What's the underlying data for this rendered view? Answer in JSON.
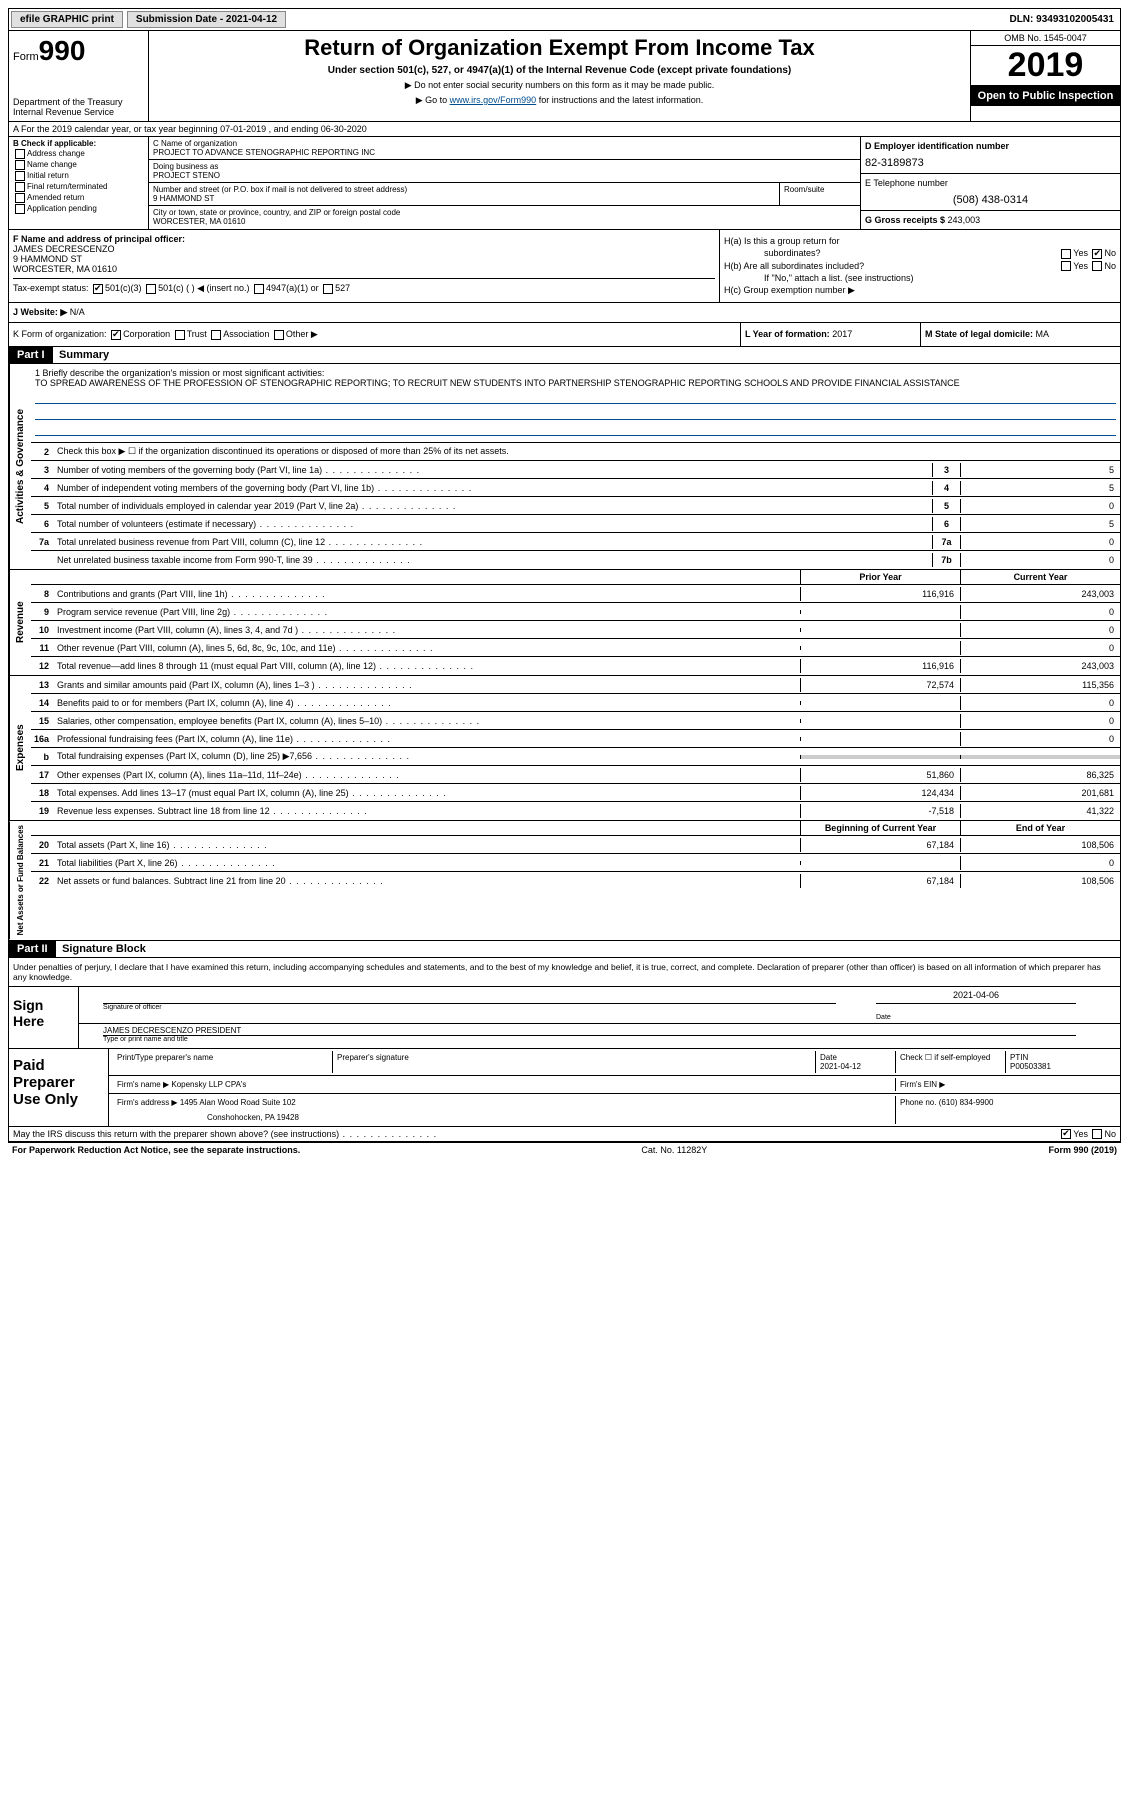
{
  "topbar": {
    "efile": "efile GRAPHIC print",
    "subdate_label": "Submission Date - 2021-04-12",
    "dln": "DLN: 93493102005431"
  },
  "hdr": {
    "form_prefix": "Form",
    "form_num": "990",
    "dept": "Department of the Treasury\nInternal Revenue Service",
    "title": "Return of Organization Exempt From Income Tax",
    "sub": "Under section 501(c), 527, or 4947(a)(1) of the Internal Revenue Code (except private foundations)",
    "note1": "▶ Do not enter social security numbers on this form as it may be made public.",
    "note2_pre": "▶ Go to ",
    "note2_link": "www.irs.gov/Form990",
    "note2_post": " for instructions and the latest information.",
    "omb": "OMB No. 1545-0047",
    "year": "2019",
    "inspect": "Open to Public Inspection"
  },
  "rowA": "A For the 2019 calendar year, or tax year beginning 07-01-2019   , and ending 06-30-2020",
  "colB": {
    "title": "B Check if applicable:",
    "opts": [
      "Address change",
      "Name change",
      "Initial return",
      "Final return/terminated",
      "Amended return",
      "Application pending"
    ]
  },
  "colC": {
    "name_label": "C Name of organization",
    "name": "PROJECT TO ADVANCE STENOGRAPHIC REPORTING INC",
    "dba_label": "Doing business as",
    "dba": "PROJECT STENO",
    "street_label": "Number and street (or P.O. box if mail is not delivered to street address)",
    "street": "9 HAMMOND ST",
    "suite_label": "Room/suite",
    "city_label": "City or town, state or province, country, and ZIP or foreign postal code",
    "city": "WORCESTER, MA  01610"
  },
  "colD": {
    "ein_label": "D Employer identification number",
    "ein": "82-3189873",
    "phone_label": "E Telephone number",
    "phone": "(508) 438-0314",
    "gross_label": "G Gross receipts $ ",
    "gross": "243,003"
  },
  "rowF": {
    "label": "F Name and address of principal officer:",
    "name": "JAMES DECRESCENZO",
    "addr1": "9 HAMMOND ST",
    "addr2": "WORCESTER, MA  01610"
  },
  "rowH": {
    "a": "H(a)  Is this a group return for",
    "a2": "subordinates?",
    "b": "H(b)  Are all subordinates included?",
    "note": "If \"No,\" attach a list. (see instructions)",
    "c": "H(c)  Group exemption number ▶"
  },
  "taxexempt": {
    "label": "Tax-exempt status:",
    "c3": "501(c)(3)",
    "c": "501(c) (  ) ◀ (insert no.)",
    "a1": "4947(a)(1) or",
    "527": "527"
  },
  "rowJ": {
    "label": "J  Website: ▶",
    "val": "N/A"
  },
  "rowK": {
    "left": "K Form of organization:",
    "corp": "Corporation",
    "trust": "Trust",
    "assoc": "Association",
    "other": "Other ▶",
    "mid_label": "L Year of formation: ",
    "mid_val": "2017",
    "right_label": "M State of legal domicile: ",
    "right_val": "MA"
  },
  "part1": {
    "hdr": "Part I",
    "title": "Summary",
    "mission_label": "1  Briefly describe the organization's mission or most significant activities:",
    "mission": "TO SPREAD AWARENESS OF THE PROFESSION OF STENOGRAPHIC REPORTING; TO RECRUIT NEW STUDENTS INTO PARTNERSHIP STENOGRAPHIC REPORTING SCHOOLS AND PROVIDE FINANCIAL ASSISTANCE",
    "line2": "Check this box ▶ ☐  if the organization discontinued its operations or disposed of more than 25% of its net assets.",
    "gov": [
      {
        "n": "3",
        "d": "Number of voting members of the governing body (Part VI, line 1a)",
        "b": "3",
        "v": "5"
      },
      {
        "n": "4",
        "d": "Number of independent voting members of the governing body (Part VI, line 1b)",
        "b": "4",
        "v": "5"
      },
      {
        "n": "5",
        "d": "Total number of individuals employed in calendar year 2019 (Part V, line 2a)",
        "b": "5",
        "v": "0"
      },
      {
        "n": "6",
        "d": "Total number of volunteers (estimate if necessary)",
        "b": "6",
        "v": "5"
      },
      {
        "n": "7a",
        "d": "Total unrelated business revenue from Part VIII, column (C), line 12",
        "b": "7a",
        "v": "0"
      },
      {
        "n": "",
        "d": "Net unrelated business taxable income from Form 990-T, line 39",
        "b": "7b",
        "v": "0"
      }
    ],
    "prior_hdr": "Prior Year",
    "curr_hdr": "Current Year",
    "rev": [
      {
        "n": "8",
        "d": "Contributions and grants (Part VIII, line 1h)",
        "p": "116,916",
        "c": "243,003"
      },
      {
        "n": "9",
        "d": "Program service revenue (Part VIII, line 2g)",
        "p": "",
        "c": "0"
      },
      {
        "n": "10",
        "d": "Investment income (Part VIII, column (A), lines 3, 4, and 7d )",
        "p": "",
        "c": "0"
      },
      {
        "n": "11",
        "d": "Other revenue (Part VIII, column (A), lines 5, 6d, 8c, 9c, 10c, and 11e)",
        "p": "",
        "c": "0"
      },
      {
        "n": "12",
        "d": "Total revenue—add lines 8 through 11 (must equal Part VIII, column (A), line 12)",
        "p": "116,916",
        "c": "243,003"
      }
    ],
    "exp": [
      {
        "n": "13",
        "d": "Grants and similar amounts paid (Part IX, column (A), lines 1–3 )",
        "p": "72,574",
        "c": "115,356"
      },
      {
        "n": "14",
        "d": "Benefits paid to or for members (Part IX, column (A), line 4)",
        "p": "",
        "c": "0"
      },
      {
        "n": "15",
        "d": "Salaries, other compensation, employee benefits (Part IX, column (A), lines 5–10)",
        "p": "",
        "c": "0"
      },
      {
        "n": "16a",
        "d": "Professional fundraising fees (Part IX, column (A), line 11e)",
        "p": "",
        "c": "0"
      },
      {
        "n": "b",
        "d": "Total fundraising expenses (Part IX, column (D), line 25) ▶7,656",
        "p": "shade",
        "c": "shade"
      },
      {
        "n": "17",
        "d": "Other expenses (Part IX, column (A), lines 11a–11d, 11f–24e)",
        "p": "51,860",
        "c": "86,325"
      },
      {
        "n": "18",
        "d": "Total expenses. Add lines 13–17 (must equal Part IX, column (A), line 25)",
        "p": "124,434",
        "c": "201,681"
      },
      {
        "n": "19",
        "d": "Revenue less expenses. Subtract line 18 from line 12",
        "p": "-7,518",
        "c": "41,322"
      }
    ],
    "beg_hdr": "Beginning of Current Year",
    "end_hdr": "End of Year",
    "net": [
      {
        "n": "20",
        "d": "Total assets (Part X, line 16)",
        "p": "67,184",
        "c": "108,506"
      },
      {
        "n": "21",
        "d": "Total liabilities (Part X, line 26)",
        "p": "",
        "c": "0"
      },
      {
        "n": "22",
        "d": "Net assets or fund balances. Subtract line 21 from line 20",
        "p": "67,184",
        "c": "108,506"
      }
    ]
  },
  "part2": {
    "hdr": "Part II",
    "title": "Signature Block",
    "intro": "Under penalties of perjury, I declare that I have examined this return, including accompanying schedules and statements, and to the best of my knowledge and belief, it is true, correct, and complete. Declaration of preparer (other than officer) is based on all information of which preparer has any knowledge.",
    "sign_here": "Sign Here",
    "sig_officer": "Signature of officer",
    "sig_date": "2021-04-06",
    "sig_date_label": "Date",
    "officer_name": "JAMES DECRESCENZO  PRESIDENT",
    "officer_name_label": "Type or print name and title",
    "paid": "Paid Preparer Use Only",
    "prep_name_label": "Print/Type preparer's name",
    "prep_sig_label": "Preparer's signature",
    "prep_date_label": "Date",
    "prep_date": "2021-04-12",
    "self_emp": "Check ☐  if self-employed",
    "ptin_label": "PTIN",
    "ptin": "P00503381",
    "firm_name_label": "Firm's name    ▶",
    "firm_name": "Kopensky LLP CPA's",
    "firm_ein_label": "Firm's EIN ▶",
    "firm_addr_label": "Firm's address ▶",
    "firm_addr1": "1495 Alan Wood Road Suite 102",
    "firm_addr2": "Conshohocken, PA  19428",
    "firm_phone_label": "Phone no. ",
    "firm_phone": "(610) 834-9900",
    "discuss": "May the IRS discuss this return with the preparer shown above? (see instructions)"
  },
  "footer": {
    "left": "For Paperwork Reduction Act Notice, see the separate instructions.",
    "mid": "Cat. No. 11282Y",
    "right": "Form 990 (2019)"
  },
  "labels": {
    "yes": "Yes",
    "no": "No",
    "activities": "Activities & Governance",
    "revenue": "Revenue",
    "expenses": "Expenses",
    "netassets": "Net Assets or Fund Balances",
    "b_hidden": "b"
  }
}
